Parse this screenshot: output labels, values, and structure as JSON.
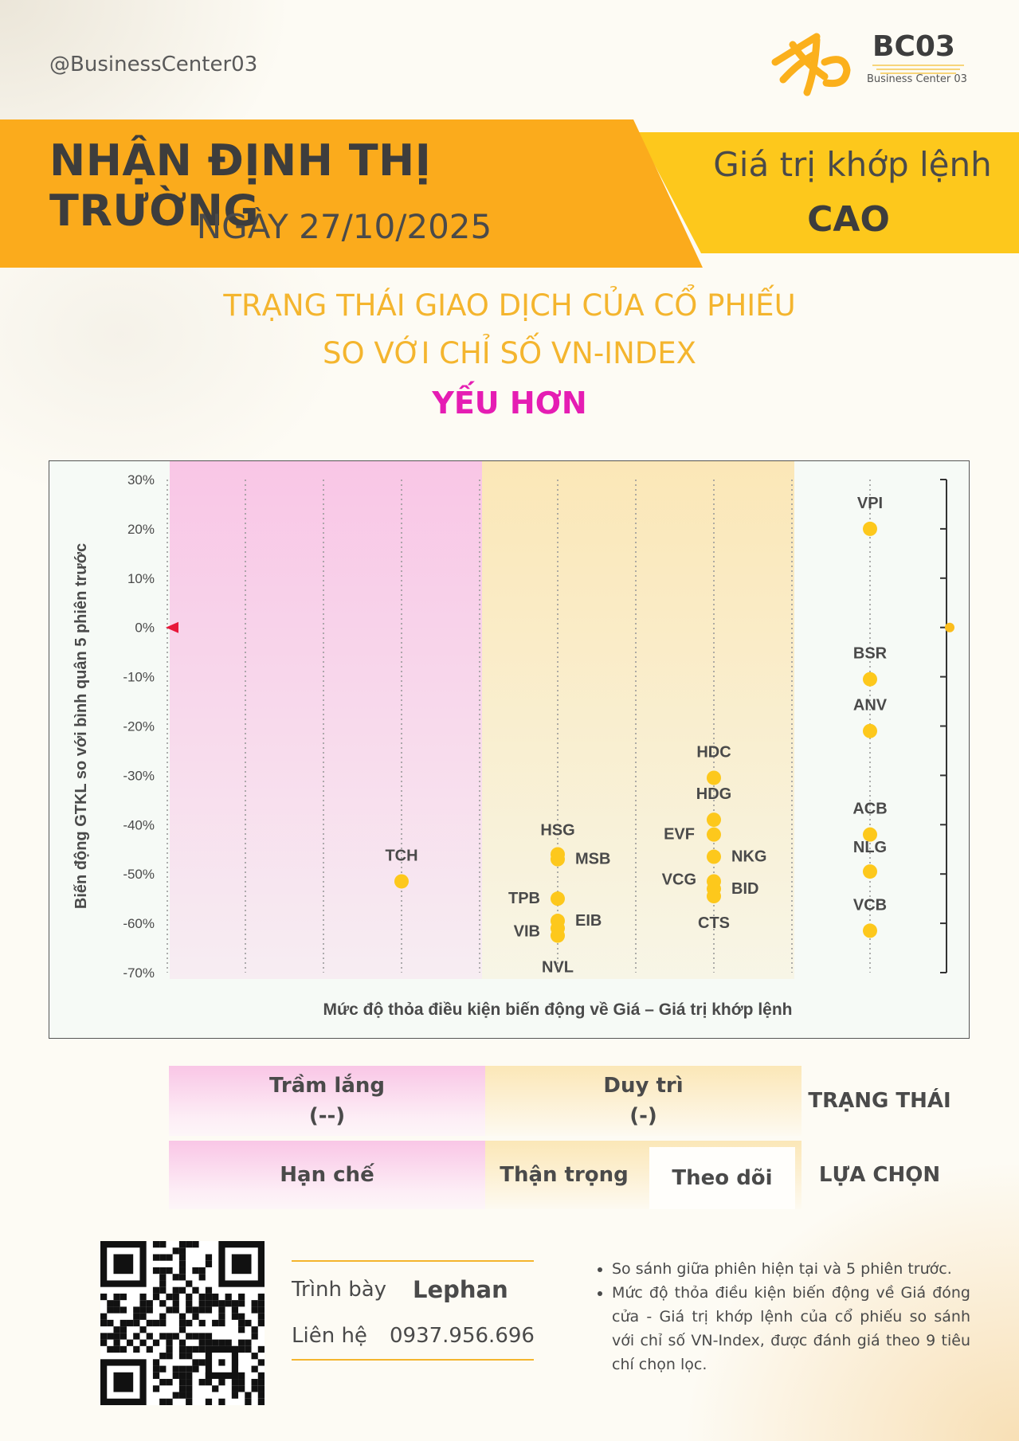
{
  "header": {
    "handle": "@BusinessCenter03",
    "logo_text": "BC03",
    "logo_subtext": "Business Center 03"
  },
  "banner": {
    "title": "NHẬN ĐỊNH THỊ TRƯỜNG",
    "date": "NGÀY 27/10/2025",
    "right_label": "Giá trị khớp lệnh",
    "right_value": "CAO",
    "colors": {
      "orange": "#fbab1c",
      "yellow": "#fdc81c"
    }
  },
  "subtitle": {
    "line1": "TRẠNG THÁI GIAO DỊCH CỦA CỔ PHIẾU",
    "line2": "SO VỚI CHỈ SỐ VN-INDEX",
    "status": "YẾU HƠN"
  },
  "chart_data": {
    "type": "scatter",
    "ylabel": "Biến động GTKL so với bình quân 5 phiên trước",
    "xlabel": "Mức độ thỏa điều kiện biến động về Giá – Giá trị khớp lệnh",
    "ylim": [
      -70,
      30
    ],
    "xlim": [
      0,
      10
    ],
    "y_ticks": [
      "30%",
      "20%",
      "10%",
      "0%",
      "-10%",
      "-20%",
      "-30%",
      "-40%",
      "-50%",
      "-60%",
      "-70%"
    ],
    "zones": [
      {
        "name": "Trầm lắng",
        "x_range": [
          0,
          4
        ],
        "color": "#f9c6e6"
      },
      {
        "name": "Duy trì",
        "x_range": [
          4,
          8
        ],
        "color": "#fbe7b7"
      }
    ],
    "marker_color": "#fdc81c",
    "points": [
      {
        "label": "TCH",
        "x": 3,
        "y": -51.5
      },
      {
        "label": "HSG",
        "x": 5,
        "y": -46
      },
      {
        "label": "MSB",
        "x": 5,
        "y": -47
      },
      {
        "label": "TPB",
        "x": 5,
        "y": -55
      },
      {
        "label": "EIB",
        "x": 5,
        "y": -59.5
      },
      {
        "label": "VIB",
        "x": 5,
        "y": -61
      },
      {
        "label": "NVL",
        "x": 5,
        "y": -62.5
      },
      {
        "label": "HDC",
        "x": 7,
        "y": -30.5
      },
      {
        "label": "HDG",
        "x": 7,
        "y": -39
      },
      {
        "label": "EVF",
        "x": 7,
        "y": -42
      },
      {
        "label": "NKG",
        "x": 7,
        "y": -46.5
      },
      {
        "label": "VCG",
        "x": 7,
        "y": -51.5
      },
      {
        "label": "BID",
        "x": 7,
        "y": -53
      },
      {
        "label": "CTS",
        "x": 7,
        "y": -54.5
      },
      {
        "label": "VPI",
        "x": 9,
        "y": 20
      },
      {
        "label": "BSR",
        "x": 9,
        "y": -10.5
      },
      {
        "label": "ANV",
        "x": 9,
        "y": -21
      },
      {
        "label": "ACB",
        "x": 9,
        "y": -42
      },
      {
        "label": "NLG",
        "x": 9,
        "y": -49.5
      },
      {
        "label": "VCB",
        "x": 9,
        "y": -61.5
      }
    ]
  },
  "status_table": {
    "zone1_title": "Trầm lắng",
    "zone1_symbol": "(--)",
    "zone2_title": "Duy trì",
    "zone2_symbol": "(-)",
    "status_label": "TRẠNG THÁI",
    "choice1": "Hạn chế",
    "choice2": "Thận trọng",
    "choice3": "Theo dõi",
    "choice_label": "LỰA CHỌN"
  },
  "contact": {
    "presenter_label": "Trình bày",
    "presenter_name": "Lephan",
    "phone_label": "Liên hệ",
    "phone": "0937.956.696"
  },
  "notes": [
    "So sánh giữa phiên hiện tại và 5 phiên trước.",
    "Mức độ thỏa điều kiện biến động về Giá đóng cửa - Giá trị khớp lệnh của cổ phiếu so sánh với chỉ số VN-Index, được đánh giá theo 9 tiêu chí chọn lọc."
  ]
}
